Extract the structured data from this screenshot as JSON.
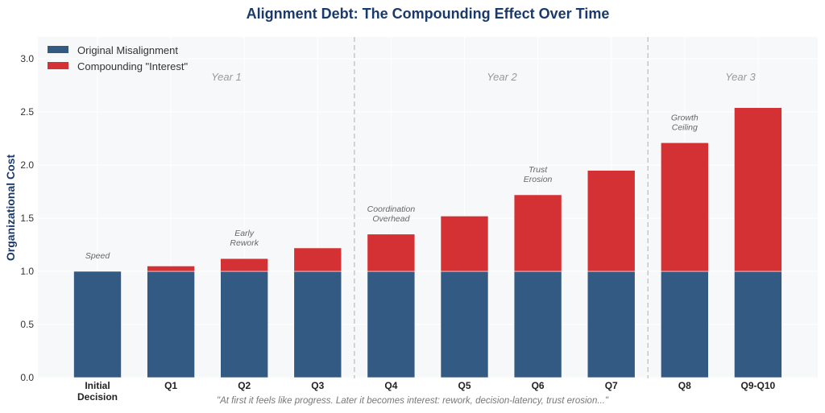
{
  "chart_data": {
    "type": "bar",
    "stacked": true,
    "title": "Alignment Debt: The Compounding Effect Over Time",
    "xlabel": "",
    "ylabel": "Organizational Cost",
    "ylim": [
      0,
      3.2
    ],
    "yticks": [
      "0.0",
      "0.5",
      "1.0",
      "1.5",
      "2.0",
      "2.5",
      "3.0"
    ],
    "ytick_values": [
      0,
      0.5,
      1.0,
      1.5,
      2.0,
      2.5,
      3.0
    ],
    "grid": true,
    "categories": [
      "Initial\nDecision",
      "Q1",
      "Q2",
      "Q3",
      "Q4",
      "Q5",
      "Q6",
      "Q7",
      "Q8",
      "Q9-Q10"
    ],
    "category_lines": [
      [
        "Initial",
        "Decision"
      ],
      [
        "Q1"
      ],
      [
        "Q2"
      ],
      [
        "Q3"
      ],
      [
        "Q4"
      ],
      [
        "Q5"
      ],
      [
        "Q6"
      ],
      [
        "Q7"
      ],
      [
        "Q8"
      ],
      [
        "Q9-Q10"
      ]
    ],
    "series": [
      {
        "name": "Original Misalignment",
        "color": "#325a82",
        "values": [
          1.0,
          1.0,
          1.0,
          1.0,
          1.0,
          1.0,
          1.0,
          1.0,
          1.0,
          1.0
        ]
      },
      {
        "name": "Compounding \"Interest\"",
        "color": "#d33133",
        "values": [
          0.0,
          0.05,
          0.12,
          0.22,
          0.35,
          0.52,
          0.72,
          0.95,
          1.21,
          1.54
        ]
      }
    ],
    "legend_position": "top-left",
    "annotations": [
      {
        "category_index": 0,
        "lines": [
          "Speed"
        ]
      },
      {
        "category_index": 2,
        "lines": [
          "Early",
          "Rework"
        ]
      },
      {
        "category_index": 4,
        "lines": [
          "Coordination",
          "Overhead"
        ]
      },
      {
        "category_index": 6,
        "lines": [
          "Trust",
          "Erosion"
        ]
      },
      {
        "category_index": 8,
        "lines": [
          "Growth",
          "Ceiling"
        ]
      }
    ],
    "periods": [
      {
        "label": "Year 1",
        "start_index": 0,
        "end_index": 3
      },
      {
        "label": "Year 2",
        "start_index": 4,
        "end_index": 7
      },
      {
        "label": "Year 3",
        "start_index": 8,
        "end_index": 9
      }
    ],
    "period_dividers_after_index": [
      3,
      7
    ],
    "caption": "\"At first it feels like progress. Later it becomes interest: rework, decision-latency, trust erosion...\""
  },
  "colors": {
    "plot_background": "#f7f8fa",
    "title": "#1a3a6b",
    "divider": "#c8c8c8"
  }
}
